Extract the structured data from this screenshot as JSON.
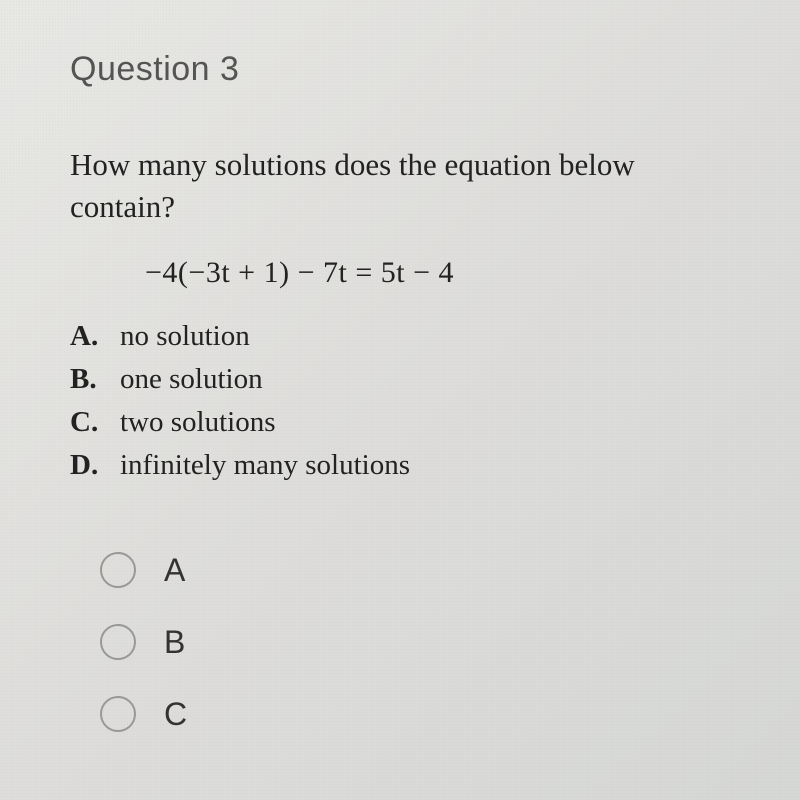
{
  "header": {
    "title": "Question 3"
  },
  "question": {
    "prompt": "How many solutions does the equation below contain?",
    "equation": "−4(−3t + 1) − 7t = 5t − 4"
  },
  "options": [
    {
      "letter": "A.",
      "text": "no solution"
    },
    {
      "letter": "B.",
      "text": "one solution"
    },
    {
      "letter": "C.",
      "text": "two solutions"
    },
    {
      "letter": "D.",
      "text": "infinitely many solutions"
    }
  ],
  "radios": [
    {
      "label": "A"
    },
    {
      "label": "B"
    },
    {
      "label": "C"
    }
  ],
  "styling": {
    "header_fontsize": 34,
    "body_fontsize": 31,
    "equation_fontsize": 30,
    "option_fontsize": 29,
    "radio_label_fontsize": 32,
    "header_color": "#555555",
    "text_color": "#222222",
    "radio_border_color": "#999999",
    "background_gradient": [
      "#e8e8e5",
      "#dedddb",
      "#d6d8d6"
    ],
    "font_family_serif": "Georgia",
    "font_family_sans": "Segoe UI"
  }
}
